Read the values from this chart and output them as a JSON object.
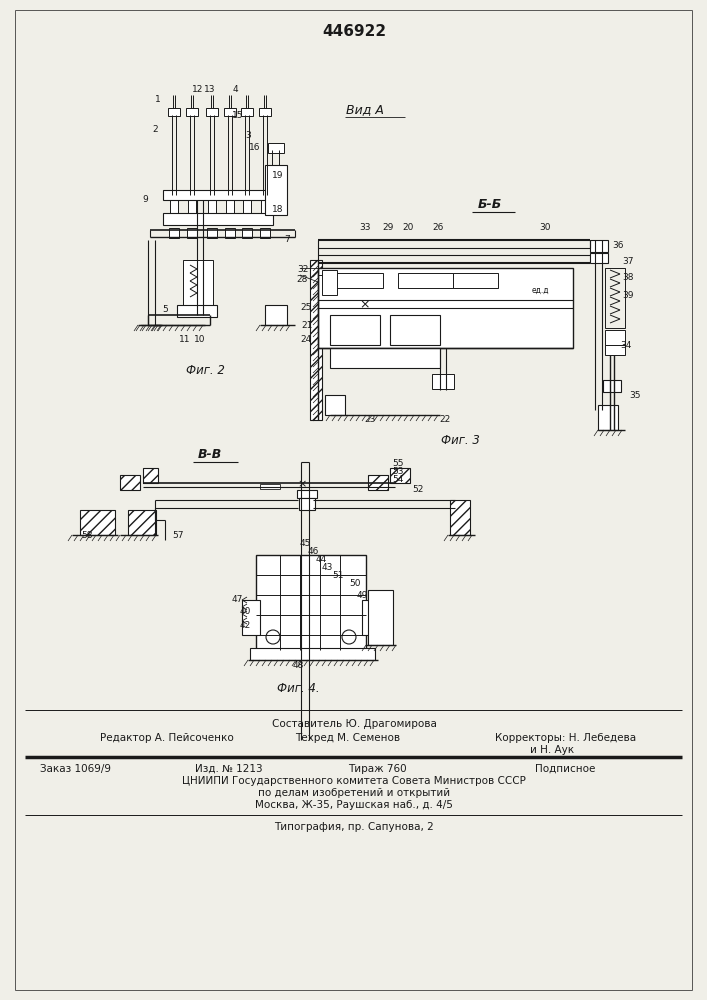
{
  "patent_number": "446922",
  "background_color": "#f0efe8",
  "line_color": "#1a1a1a",
  "fig2_label": "Фиг. 2",
  "fig3_label": "Фиг. 3",
  "fig4_label": "Фиг. 4.",
  "vida_label": "Вид A",
  "bb_label": "Б-Б",
  "vv_label": "В-В",
  "footer_composer": "Составитель Ю. Драгомирова",
  "footer_editor": "Редактор А. Пейсоченко",
  "footer_techred": "Техред М. Семенов",
  "footer_correctors": "Корректоры: Н. Лебедева",
  "footer_correctors2": "и Н. Аук",
  "footer_order": "Заказ 1069/9",
  "footer_izd": "Изд. № 1213",
  "footer_tirazh": "Тираж 760",
  "footer_podpisnoe": "Подписное",
  "footer_cniipи": "ЦНИИПИ Государственного комитета Совета Министров СССР",
  "footer_po_delam": "по делам изобретений и открытий",
  "footer_moskva": "Москва, Ж-35, Раушская наб., д. 4/5",
  "footer_tipografia": "Типография, пр. Сапунова, 2"
}
